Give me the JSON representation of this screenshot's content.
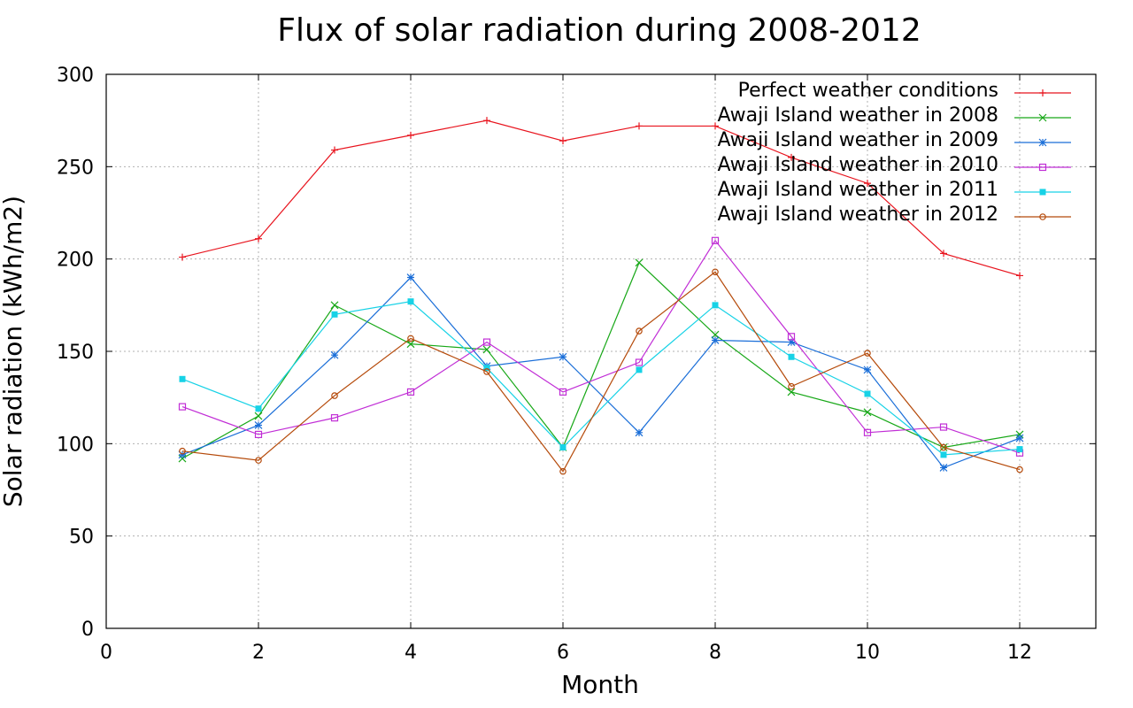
{
  "chart_data": {
    "type": "line",
    "title": "Flux of solar radiation during 2008-2012",
    "xlabel": "Month",
    "ylabel": "Solar radiation (kWh/m2)",
    "xlim": [
      0,
      13
    ],
    "ylim": [
      0,
      300
    ],
    "xticks": [
      0,
      2,
      4,
      6,
      8,
      10,
      12
    ],
    "yticks": [
      0,
      50,
      100,
      150,
      200,
      250,
      300
    ],
    "grid": true,
    "legend_position": "top-right",
    "x": [
      1,
      2,
      3,
      4,
      5,
      6,
      7,
      8,
      9,
      10,
      11,
      12
    ],
    "series": [
      {
        "name": "Perfect weather conditions",
        "color": "#e8141e",
        "marker": "plus",
        "values": [
          201,
          211,
          259,
          267,
          275,
          264,
          272,
          272,
          255,
          241,
          203,
          191
        ]
      },
      {
        "name": "Awaji Island weather in 2008",
        "color": "#18a818",
        "marker": "cross",
        "values": [
          92,
          115,
          175,
          154,
          151,
          98,
          198,
          159,
          128,
          117,
          98,
          105
        ]
      },
      {
        "name": "Awaji Island weather in 2009",
        "color": "#1a6ed8",
        "marker": "star",
        "values": [
          94,
          110,
          148,
          190,
          142,
          147,
          106,
          156,
          155,
          140,
          87,
          103
        ]
      },
      {
        "name": "Awaji Island weather in 2010",
        "color": "#c12ed6",
        "marker": "open-square",
        "values": [
          120,
          105,
          114,
          128,
          155,
          128,
          144,
          210,
          158,
          106,
          109,
          95
        ]
      },
      {
        "name": "Awaji Island weather in 2011",
        "color": "#17d2e6",
        "marker": "filled-square",
        "values": [
          135,
          119,
          170,
          177,
          141,
          98,
          140,
          175,
          147,
          127,
          94,
          97
        ]
      },
      {
        "name": "Awaji Island weather in 2012",
        "color": "#b54a0a",
        "marker": "open-circle",
        "values": [
          96,
          91,
          126,
          157,
          139,
          85,
          161,
          193,
          131,
          149,
          98,
          86
        ]
      }
    ]
  }
}
